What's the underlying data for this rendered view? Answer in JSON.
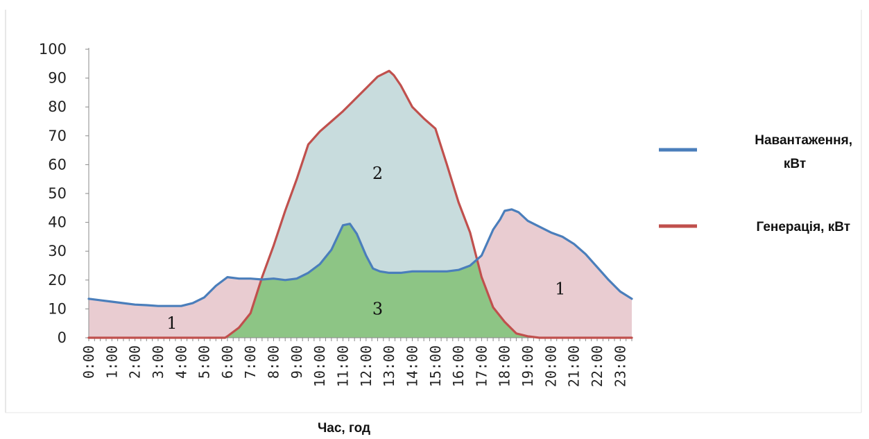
{
  "chart_data": {
    "type": "area",
    "xlabel": "Час, год",
    "ylabel": "",
    "ylim": [
      0,
      100
    ],
    "yticks": [
      "0",
      "10",
      "20",
      "30",
      "40",
      "50",
      "60",
      "70",
      "80",
      "90",
      "100"
    ],
    "xticks": [
      "0:00",
      "1:00",
      "2:00",
      "3:00",
      "4:00",
      "5:00",
      "6:00",
      "7:00",
      "8:00",
      "9:00",
      "10:00",
      "11:00",
      "12:00",
      "13:00",
      "14:00",
      "15:00",
      "16:00",
      "17:00",
      "18:00",
      "19:00",
      "20:00",
      "21:00",
      "22:00",
      "23:00"
    ],
    "grid": false,
    "legend_position": "right",
    "region_labels": [
      {
        "label": "1",
        "x": 3.6,
        "y": 5
      },
      {
        "label": "2",
        "x": 12.5,
        "y": 57
      },
      {
        "label": "3",
        "x": 12.5,
        "y": 10
      },
      {
        "label": "1",
        "x": 20.4,
        "y": 17
      }
    ],
    "series": [
      {
        "name": "Навантаження, кВт",
        "color": "#4A7EBB",
        "x": [
          0,
          0.5,
          1,
          1.5,
          2,
          2.5,
          3,
          3.5,
          4,
          4.5,
          5,
          5.5,
          6,
          6.5,
          7,
          7.5,
          8,
          8.5,
          9,
          9.5,
          10,
          10.5,
          11,
          11.3,
          11.6,
          12,
          12.3,
          12.6,
          13,
          13.5,
          14,
          14.5,
          15,
          15.5,
          16,
          16.5,
          17,
          17.5,
          17.8,
          18,
          18.3,
          18.6,
          19,
          19.5,
          20,
          20.5,
          21,
          21.5,
          22,
          22.5,
          23,
          23.5
        ],
        "values": [
          13.5,
          13,
          12.5,
          12,
          11.5,
          11.3,
          11,
          11,
          11,
          12,
          14,
          18,
          21,
          20.5,
          20.5,
          20.2,
          20.5,
          20,
          20.5,
          22.5,
          25.5,
          30.5,
          39,
          39.5,
          36,
          28.5,
          24,
          23,
          22.5,
          22.5,
          23,
          23,
          23,
          23,
          23.5,
          25,
          28.5,
          37.5,
          41,
          44,
          44.5,
          43.5,
          40.5,
          38.5,
          36.5,
          35,
          32.5,
          29,
          24.5,
          20,
          16,
          13.5
        ]
      },
      {
        "name": "Генерація, кВт",
        "color": "#C0504D",
        "x": [
          0,
          1,
          2,
          3,
          4,
          5,
          5.9,
          6,
          6.5,
          7,
          7.5,
          8,
          8.5,
          9,
          9.5,
          10,
          10.5,
          11,
          11.5,
          12,
          12.5,
          13,
          13.2,
          13.5,
          14,
          14.5,
          15,
          15.5,
          16,
          16.5,
          17,
          17.5,
          18,
          18.5,
          19,
          19.5,
          20,
          21,
          22,
          23,
          23.5
        ],
        "values": [
          0,
          0,
          0,
          0,
          0,
          0,
          0,
          0.5,
          3.5,
          8.5,
          21,
          32,
          44,
          55,
          67,
          71.5,
          75,
          78.5,
          82.5,
          86.5,
          90.5,
          92.5,
          91,
          87.5,
          80,
          76,
          72.5,
          60,
          47,
          36.5,
          21,
          10.5,
          5.5,
          1.5,
          0.5,
          0,
          0,
          0,
          0,
          0,
          0
        ]
      }
    ]
  }
}
